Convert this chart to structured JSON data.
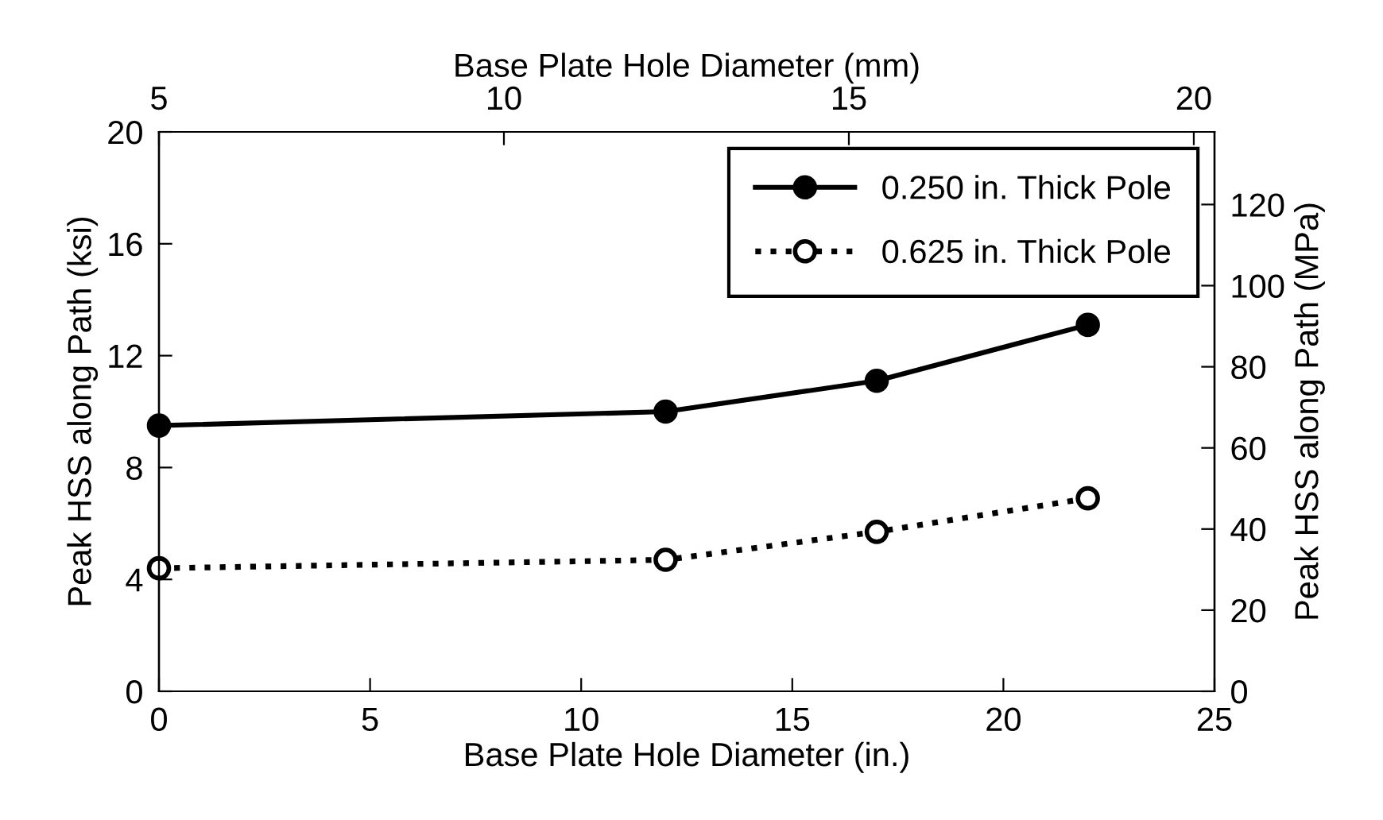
{
  "chart_data": {
    "type": "line",
    "xlabel": "Base Plate Hole Diameter (in.)",
    "ylabel": "Peak HSS along Path (ksi)",
    "y2label": "Peak HSS along Path (MPa)",
    "x2label": "Base Plate Hole Diameter (mm)",
    "x": [
      0,
      12,
      17,
      22
    ],
    "series": [
      {
        "name": "0.250 in. Thick Pole",
        "color": "#000000",
        "values": [
          9.5,
          10.0,
          11.1,
          13.1
        ],
        "marker": "circle",
        "line_style": "solid"
      },
      {
        "name": "0.625 in. Thick Pole",
        "color": "#000000",
        "values": [
          4.4,
          4.7,
          5.7,
          6.9
        ],
        "marker": "circle",
        "line_style": "dotted"
      }
    ],
    "xlim": [
      0,
      25
    ],
    "xticks": [
      0,
      5,
      10,
      15,
      20,
      25
    ],
    "ylim": [
      0,
      20
    ],
    "yticks": [
      0,
      4,
      8,
      12,
      16,
      20
    ],
    "y2lim": [
      0,
      137.9
    ],
    "y2ticks": [
      0,
      20,
      40,
      60,
      80,
      100,
      120
    ],
    "x2lim": [
      5,
      20.3
    ],
    "x2ticks": [
      5,
      10,
      15,
      20
    ],
    "grid": false,
    "legend": "top right"
  }
}
